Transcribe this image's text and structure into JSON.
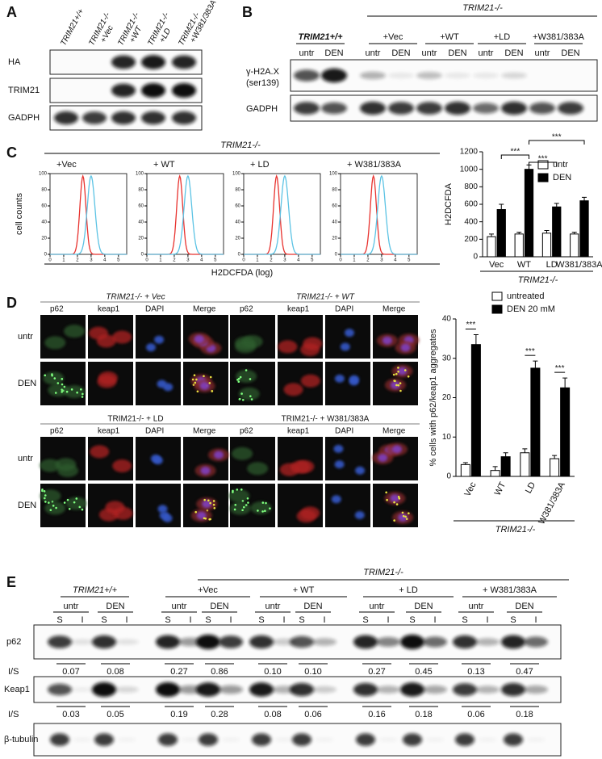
{
  "panel_labels": [
    "A",
    "B",
    "C",
    "D",
    "E"
  ],
  "panel_a": {
    "lanes": [
      [
        "TRIM21+/+"
      ],
      [
        "TRIM21-/-",
        "+Vec"
      ],
      [
        "TRIM21-/-",
        "+WT"
      ],
      [
        "TRIM21-/-",
        "+LD"
      ],
      [
        "TRIM21-/-",
        "+W381/383A"
      ]
    ],
    "blots": [
      "HA",
      "TRIM21",
      "GADPH"
    ]
  },
  "panel_b": {
    "group_title": "TRIM21-/-",
    "groups": [
      "TRIM21+/+",
      "+Vec",
      "+WT",
      "+LD",
      "+W381/383A"
    ],
    "conditions": [
      "untr",
      "DEN"
    ],
    "blots": [
      [
        "γ-H2A.X",
        "(ser139)"
      ],
      [
        "GADPH"
      ]
    ]
  },
  "panel_c": {
    "group_title": "TRIM21-/-",
    "plot_titles": [
      "+Vec",
      "+ WT",
      "+ LD",
      "+ W381/383A"
    ],
    "ylabel": "cell counts",
    "xlabel": "H2DCFDA (log)",
    "xlim": [
      0,
      5.6
    ],
    "ylim": [
      0,
      100
    ],
    "xticks": [
      0,
      1,
      2,
      3,
      4,
      5
    ],
    "yticks": [
      0,
      20,
      40,
      60,
      80,
      100
    ],
    "curves": [
      {
        "color": "#e8322e",
        "peak": 2.4
      },
      {
        "color": "#5cc3e4",
        "peak": 3.0
      }
    ]
  },
  "chart_data": [
    {
      "type": "bar",
      "ylabel": "H2DCFDA",
      "categories": [
        "Vec",
        "WT",
        "LD",
        "W381/383A"
      ],
      "group_label": "TRIM21-/-",
      "series": [
        {
          "name": "untr",
          "color": "#ffffff",
          "values": [
            230,
            260,
            270,
            260
          ],
          "errors": [
            30,
            20,
            30,
            20
          ]
        },
        {
          "name": "DEN",
          "color": "#000000",
          "values": [
            540,
            1000,
            570,
            640
          ],
          "errors": [
            60,
            50,
            40,
            40
          ]
        }
      ],
      "ylim": [
        0,
        1200
      ],
      "yticks": [
        0,
        200,
        400,
        600,
        800,
        1000,
        1200
      ],
      "legend": "upper right",
      "annotations": [
        {
          "text": "***",
          "from": 0,
          "to": 1
        },
        {
          "text": "***",
          "from": 1,
          "to": 2
        },
        {
          "text": "***",
          "from": 1,
          "to": 3
        }
      ]
    },
    {
      "type": "bar",
      "ylabel": "% cells with p62/keap1 aggregates",
      "categories": [
        "Vec",
        "WT",
        "LD",
        "W381/383A"
      ],
      "group_label": "TRIM21-/-",
      "series": [
        {
          "name": "untreated",
          "color": "#ffffff",
          "values": [
            3,
            1.5,
            6,
            4.5
          ],
          "errors": [
            0.5,
            1,
            1,
            0.8
          ]
        },
        {
          "name": "DEN 20 mM",
          "color": "#000000",
          "values": [
            33.5,
            5,
            27.5,
            22.5
          ],
          "errors": [
            2.5,
            1,
            1.8,
            2.5
          ]
        }
      ],
      "ylim": [
        0,
        40
      ],
      "yticks": [
        0,
        10,
        20,
        30,
        40
      ],
      "legend": "top",
      "annotations": [
        {
          "text": "***",
          "category": 0
        },
        {
          "text": "***",
          "category": 2
        },
        {
          "text": "***",
          "category": 3
        }
      ]
    }
  ],
  "panel_d": {
    "groups": [
      "TRIM21-/-  + Vec",
      "TRIM21-/- + WT",
      "TRIM21-/- + LD",
      "TRIM21-/- + W381/383A"
    ],
    "channels": [
      "p62",
      "keap1",
      "DAPI",
      "Merge"
    ],
    "channel_colors": [
      "#3ab54a",
      "#e8322e",
      "#4a6fd8",
      "#222222"
    ],
    "rows": [
      "untr",
      "DEN"
    ]
  },
  "panel_e": {
    "group_title": "TRIM21-/-",
    "groups": [
      "TRIM21+/+",
      "+Vec",
      "+ WT",
      "+ LD",
      "+ W381/383A"
    ],
    "conditions": [
      "untr",
      "DEN"
    ],
    "fractions": [
      "S",
      "I"
    ],
    "blots": [
      "p62",
      "Keap1",
      "β-tubulin"
    ],
    "ratio_label": "I/S",
    "p62_ratios": [
      "0.07",
      "0.08",
      "0.27",
      "0.86",
      "0.10",
      "0.10",
      "0.27",
      "0.45",
      "0.13",
      "0.47"
    ],
    "keap1_ratios": [
      "0.03",
      "0.05",
      "0.19",
      "0.28",
      "0.08",
      "0.06",
      "0.16",
      "0.18",
      "0.06",
      "0.18"
    ]
  }
}
